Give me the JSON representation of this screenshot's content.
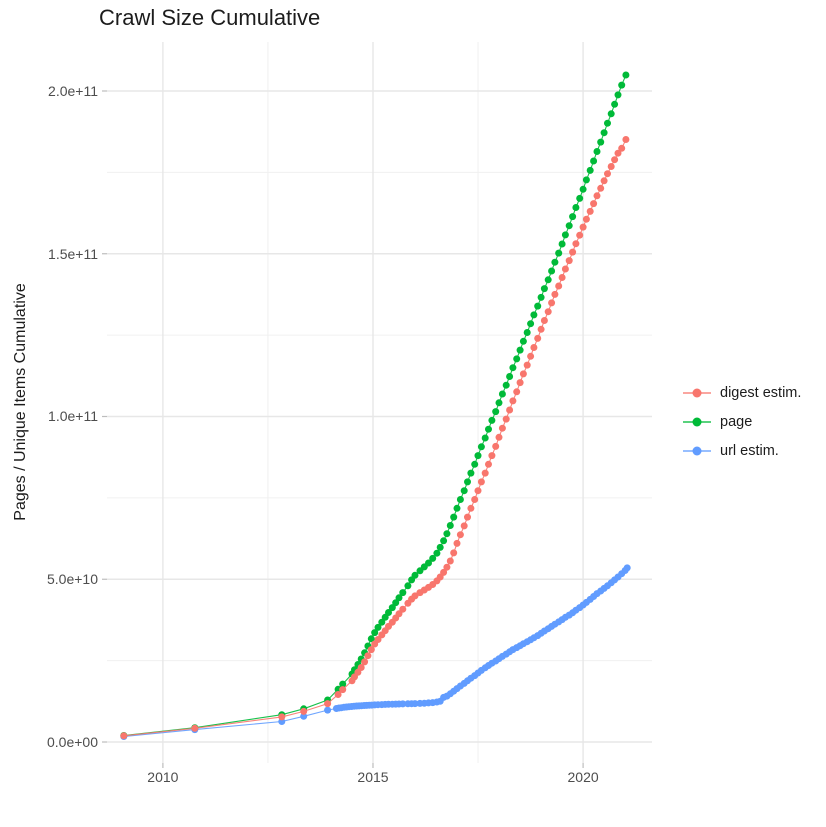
{
  "title": "Crawl Size Cumulative",
  "axes": {
    "y_title": "Pages / Unique Items Cumulative",
    "x_title": "",
    "y_ticks": [
      {
        "v": 0,
        "label": "0.0e+00"
      },
      {
        "v": 50,
        "label": "5.0e+10"
      },
      {
        "v": 100,
        "label": "1.0e+11"
      },
      {
        "v": 150,
        "label": "1.5e+11"
      },
      {
        "v": 200,
        "label": "2.0e+11"
      }
    ],
    "y_minor": [
      25,
      75,
      125,
      175
    ],
    "x_ticks": [
      {
        "v": 2010,
        "label": "2010"
      },
      {
        "v": 2015,
        "label": "2015"
      },
      {
        "v": 2020,
        "label": "2020"
      }
    ],
    "x_minor": [
      2012.5,
      2017.5
    ]
  },
  "chart_data": {
    "type": "scatter",
    "title": "Crawl Size Cumulative",
    "xlabel": "",
    "ylabel": "Pages / Unique Items Cumulative",
    "legend_position": "right",
    "grid": true,
    "value_unit": "billions of pages/items (value x 1e9)",
    "x_domain": [
      2008.67,
      2021.64
    ],
    "y_domain": [
      -6.45,
      215.05
    ],
    "series": [
      {
        "name": "digest estim.",
        "color": "#F8766D",
        "points": [
          [
            2009.07,
            1.9
          ],
          [
            2010.76,
            4.2
          ],
          [
            2012.83,
            7.7
          ],
          [
            2013.35,
            9.4
          ],
          [
            2013.92,
            11.8
          ],
          [
            2014.17,
            14.6
          ],
          [
            2014.28,
            16.1
          ],
          [
            2014.5,
            18.8
          ],
          [
            2014.56,
            20.0
          ],
          [
            2014.64,
            21.4
          ],
          [
            2014.72,
            22.9
          ],
          [
            2014.8,
            24.6
          ],
          [
            2014.88,
            26.5
          ],
          [
            2014.96,
            28.4
          ],
          [
            2015.04,
            30.1
          ],
          [
            2015.12,
            31.5
          ],
          [
            2015.21,
            32.9
          ],
          [
            2015.29,
            34.2
          ],
          [
            2015.37,
            35.5
          ],
          [
            2015.46,
            36.8
          ],
          [
            2015.54,
            38.1
          ],
          [
            2015.62,
            39.4
          ],
          [
            2015.71,
            40.8
          ],
          [
            2015.83,
            42.6
          ],
          [
            2015.92,
            43.9
          ],
          [
            2016.0,
            44.9
          ],
          [
            2016.12,
            45.9
          ],
          [
            2016.22,
            46.7
          ],
          [
            2016.32,
            47.5
          ],
          [
            2016.42,
            48.4
          ],
          [
            2016.52,
            49.5
          ],
          [
            2016.6,
            50.7
          ],
          [
            2016.68,
            52.1
          ],
          [
            2016.76,
            53.7
          ],
          [
            2016.84,
            55.6
          ],
          [
            2016.92,
            58.1
          ],
          [
            2017.0,
            61.0
          ],
          [
            2017.08,
            63.7
          ],
          [
            2017.17,
            66.4
          ],
          [
            2017.25,
            69.1
          ],
          [
            2017.33,
            71.8
          ],
          [
            2017.42,
            74.5
          ],
          [
            2017.5,
            77.2
          ],
          [
            2017.58,
            79.9
          ],
          [
            2017.67,
            82.6
          ],
          [
            2017.75,
            85.3
          ],
          [
            2017.83,
            88.0
          ],
          [
            2017.92,
            90.8
          ],
          [
            2018.0,
            93.6
          ],
          [
            2018.08,
            96.4
          ],
          [
            2018.17,
            99.2
          ],
          [
            2018.25,
            102.0
          ],
          [
            2018.33,
            104.8
          ],
          [
            2018.42,
            107.6
          ],
          [
            2018.5,
            110.4
          ],
          [
            2018.58,
            113.1
          ],
          [
            2018.67,
            115.8
          ],
          [
            2018.75,
            118.5
          ],
          [
            2018.83,
            121.2
          ],
          [
            2018.92,
            124.0
          ],
          [
            2019.0,
            126.8
          ],
          [
            2019.08,
            129.5
          ],
          [
            2019.17,
            132.2
          ],
          [
            2019.25,
            134.9
          ],
          [
            2019.33,
            137.5
          ],
          [
            2019.42,
            140.1
          ],
          [
            2019.5,
            142.7
          ],
          [
            2019.58,
            145.3
          ],
          [
            2019.67,
            147.9
          ],
          [
            2019.75,
            150.5
          ],
          [
            2019.83,
            153.1
          ],
          [
            2019.92,
            155.7
          ],
          [
            2020.0,
            158.2
          ],
          [
            2020.08,
            160.6
          ],
          [
            2020.17,
            163.0
          ],
          [
            2020.25,
            165.4
          ],
          [
            2020.33,
            167.8
          ],
          [
            2020.42,
            170.1
          ],
          [
            2020.5,
            172.4
          ],
          [
            2020.58,
            174.6
          ],
          [
            2020.67,
            176.8
          ],
          [
            2020.75,
            178.9
          ],
          [
            2020.83,
            180.9
          ],
          [
            2020.92,
            182.4
          ],
          [
            2021.02,
            185.1
          ]
        ]
      },
      {
        "name": "page",
        "color": "#00BA38",
        "points": [
          [
            2009.07,
            2.0
          ],
          [
            2010.76,
            4.4
          ],
          [
            2012.83,
            8.4
          ],
          [
            2013.35,
            10.2
          ],
          [
            2013.92,
            12.9
          ],
          [
            2014.17,
            16.2
          ],
          [
            2014.28,
            17.8
          ],
          [
            2014.5,
            20.9
          ],
          [
            2014.56,
            22.2
          ],
          [
            2014.64,
            23.8
          ],
          [
            2014.72,
            25.5
          ],
          [
            2014.8,
            27.4
          ],
          [
            2014.88,
            29.5
          ],
          [
            2014.96,
            31.7
          ],
          [
            2015.04,
            33.6
          ],
          [
            2015.12,
            35.2
          ],
          [
            2015.21,
            36.8
          ],
          [
            2015.29,
            38.3
          ],
          [
            2015.37,
            39.8
          ],
          [
            2015.46,
            41.3
          ],
          [
            2015.54,
            42.8
          ],
          [
            2015.62,
            44.3
          ],
          [
            2015.71,
            45.9
          ],
          [
            2015.83,
            48.0
          ],
          [
            2015.92,
            49.8
          ],
          [
            2016.0,
            51.2
          ],
          [
            2016.12,
            52.6
          ],
          [
            2016.22,
            53.8
          ],
          [
            2016.32,
            55.0
          ],
          [
            2016.42,
            56.4
          ],
          [
            2016.52,
            58.0
          ],
          [
            2016.6,
            59.8
          ],
          [
            2016.68,
            61.8
          ],
          [
            2016.76,
            64.0
          ],
          [
            2016.84,
            66.5
          ],
          [
            2016.92,
            69.1
          ],
          [
            2017.0,
            71.8
          ],
          [
            2017.08,
            74.5
          ],
          [
            2017.17,
            77.2
          ],
          [
            2017.25,
            79.9
          ],
          [
            2017.33,
            82.6
          ],
          [
            2017.42,
            85.3
          ],
          [
            2017.5,
            88.0
          ],
          [
            2017.58,
            90.7
          ],
          [
            2017.67,
            93.4
          ],
          [
            2017.75,
            96.1
          ],
          [
            2017.83,
            98.8
          ],
          [
            2017.92,
            101.5
          ],
          [
            2018.0,
            104.2
          ],
          [
            2018.08,
            106.9
          ],
          [
            2018.17,
            109.6
          ],
          [
            2018.25,
            112.3
          ],
          [
            2018.33,
            115.0
          ],
          [
            2018.42,
            117.7
          ],
          [
            2018.5,
            120.4
          ],
          [
            2018.58,
            123.1
          ],
          [
            2018.67,
            125.8
          ],
          [
            2018.75,
            128.5
          ],
          [
            2018.83,
            131.2
          ],
          [
            2018.92,
            133.9
          ],
          [
            2019.0,
            136.6
          ],
          [
            2019.08,
            139.3
          ],
          [
            2019.17,
            142.0
          ],
          [
            2019.25,
            144.7
          ],
          [
            2019.33,
            147.4
          ],
          [
            2019.42,
            150.2
          ],
          [
            2019.5,
            153.0
          ],
          [
            2019.58,
            155.8
          ],
          [
            2019.67,
            158.6
          ],
          [
            2019.75,
            161.4
          ],
          [
            2019.83,
            164.2
          ],
          [
            2019.92,
            167.0
          ],
          [
            2020.0,
            169.8
          ],
          [
            2020.08,
            172.7
          ],
          [
            2020.17,
            175.6
          ],
          [
            2020.25,
            178.5
          ],
          [
            2020.33,
            181.4
          ],
          [
            2020.42,
            184.3
          ],
          [
            2020.5,
            187.2
          ],
          [
            2020.58,
            190.1
          ],
          [
            2020.67,
            193.0
          ],
          [
            2020.75,
            195.9
          ],
          [
            2020.83,
            198.8
          ],
          [
            2020.92,
            201.8
          ],
          [
            2021.02,
            204.9
          ]
        ]
      },
      {
        "name": "url estim.",
        "color": "#619CFF",
        "points": [
          [
            2009.07,
            1.7
          ],
          [
            2010.76,
            3.8
          ],
          [
            2012.83,
            6.3
          ],
          [
            2013.35,
            7.9
          ],
          [
            2013.92,
            9.8
          ],
          [
            2014.13,
            10.3
          ],
          [
            2014.19,
            10.45
          ],
          [
            2014.25,
            10.55
          ],
          [
            2014.31,
            10.65
          ],
          [
            2014.37,
            10.75
          ],
          [
            2014.43,
            10.85
          ],
          [
            2014.49,
            10.92
          ],
          [
            2014.55,
            10.99
          ],
          [
            2014.61,
            11.05
          ],
          [
            2014.67,
            11.1
          ],
          [
            2014.73,
            11.15
          ],
          [
            2014.79,
            11.2
          ],
          [
            2014.85,
            11.25
          ],
          [
            2014.91,
            11.3
          ],
          [
            2014.97,
            11.35
          ],
          [
            2015.04,
            11.4
          ],
          [
            2015.12,
            11.45
          ],
          [
            2015.21,
            11.5
          ],
          [
            2015.29,
            11.55
          ],
          [
            2015.37,
            11.58
          ],
          [
            2015.46,
            11.61
          ],
          [
            2015.54,
            11.64
          ],
          [
            2015.62,
            11.67
          ],
          [
            2015.71,
            11.7
          ],
          [
            2015.83,
            11.73
          ],
          [
            2015.92,
            11.76
          ],
          [
            2016.0,
            11.8
          ],
          [
            2016.12,
            11.85
          ],
          [
            2016.22,
            11.9
          ],
          [
            2016.32,
            12.0
          ],
          [
            2016.42,
            12.1
          ],
          [
            2016.52,
            12.3
          ],
          [
            2016.6,
            12.5
          ],
          [
            2016.68,
            13.7
          ],
          [
            2016.76,
            14.1
          ],
          [
            2016.84,
            14.8
          ],
          [
            2016.92,
            15.6
          ],
          [
            2017.0,
            16.4
          ],
          [
            2017.08,
            17.2
          ],
          [
            2017.17,
            18.0
          ],
          [
            2017.25,
            18.8
          ],
          [
            2017.33,
            19.6
          ],
          [
            2017.42,
            20.4
          ],
          [
            2017.5,
            21.2
          ],
          [
            2017.58,
            22.0
          ],
          [
            2017.67,
            22.8
          ],
          [
            2017.75,
            23.5
          ],
          [
            2017.83,
            24.2
          ],
          [
            2017.92,
            24.9
          ],
          [
            2018.0,
            25.6
          ],
          [
            2018.08,
            26.3
          ],
          [
            2018.17,
            27.0
          ],
          [
            2018.25,
            27.7
          ],
          [
            2018.33,
            28.4
          ],
          [
            2018.42,
            29.0
          ],
          [
            2018.5,
            29.6
          ],
          [
            2018.58,
            30.2
          ],
          [
            2018.67,
            30.8
          ],
          [
            2018.75,
            31.4
          ],
          [
            2018.83,
            32.0
          ],
          [
            2018.92,
            32.7
          ],
          [
            2019.0,
            33.4
          ],
          [
            2019.08,
            34.1
          ],
          [
            2019.17,
            34.8
          ],
          [
            2019.25,
            35.5
          ],
          [
            2019.33,
            36.2
          ],
          [
            2019.42,
            36.9
          ],
          [
            2019.5,
            37.6
          ],
          [
            2019.58,
            38.3
          ],
          [
            2019.67,
            39.0
          ],
          [
            2019.75,
            39.7
          ],
          [
            2019.83,
            40.5
          ],
          [
            2019.92,
            41.3
          ],
          [
            2020.0,
            42.1
          ],
          [
            2020.08,
            42.9
          ],
          [
            2020.17,
            43.8
          ],
          [
            2020.25,
            44.7
          ],
          [
            2020.33,
            45.6
          ],
          [
            2020.42,
            46.4
          ],
          [
            2020.5,
            47.2
          ],
          [
            2020.58,
            48.0
          ],
          [
            2020.67,
            48.9
          ],
          [
            2020.75,
            49.8
          ],
          [
            2020.83,
            50.7
          ],
          [
            2020.92,
            51.7
          ],
          [
            2021.0,
            52.7
          ],
          [
            2021.05,
            53.5
          ]
        ]
      }
    ]
  }
}
